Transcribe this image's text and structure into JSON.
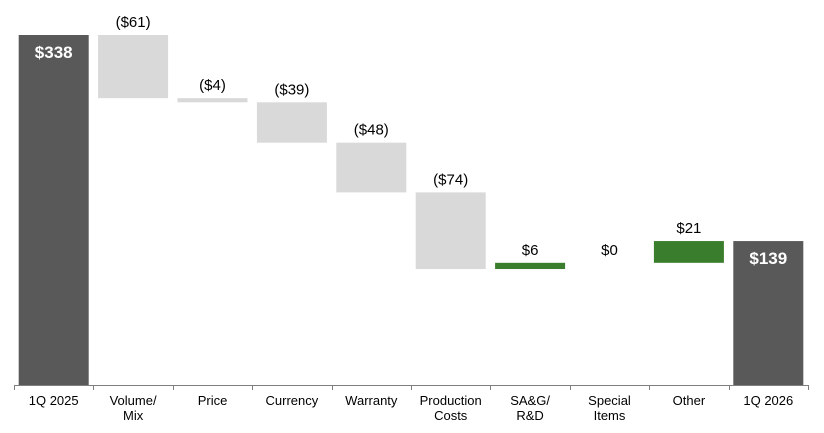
{
  "chart_data": {
    "type": "waterfall",
    "categories": [
      [
        "1Q 2025"
      ],
      [
        "Volume/",
        "Mix"
      ],
      [
        "Price"
      ],
      [
        "Currency"
      ],
      [
        "Warranty"
      ],
      [
        "Production",
        "Costs"
      ],
      [
        "SA&G/",
        "R&D"
      ],
      [
        "Special",
        "Items"
      ],
      [
        "Other"
      ],
      [
        "1Q 2026"
      ]
    ],
    "values": [
      338,
      -61,
      -4,
      -39,
      -48,
      -74,
      6,
      0,
      21,
      139
    ],
    "value_labels": [
      "$338",
      "($61)",
      "($4)",
      "($39)",
      "($48)",
      "($74)",
      "$6",
      "$0",
      "$21",
      "$139"
    ],
    "colors": {
      "total": "#595959",
      "decrease": "#d9d9d9",
      "increase": "#3a7d2c"
    },
    "ylim": [
      0,
      362
    ]
  }
}
